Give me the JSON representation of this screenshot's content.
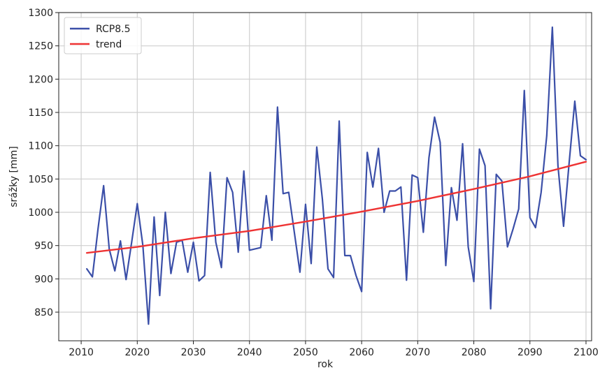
{
  "chart_data": {
    "type": "line",
    "title": "",
    "xlabel": "rok",
    "ylabel": "srážky [mm]",
    "xlim": [
      2006,
      2101
    ],
    "ylim": [
      807,
      1300
    ],
    "xticks": [
      2010,
      2020,
      2030,
      2040,
      2050,
      2060,
      2070,
      2080,
      2090,
      2100
    ],
    "yticks": [
      850,
      900,
      950,
      1000,
      1050,
      1100,
      1150,
      1200,
      1250,
      1300
    ],
    "grid": true,
    "legend_position": "top-left",
    "series": [
      {
        "name": "RCP8.5",
        "color": "#3b4fa8",
        "x": [
          2011,
          2012,
          2013,
          2014,
          2015,
          2016,
          2017,
          2018,
          2019,
          2020,
          2021,
          2022,
          2023,
          2024,
          2025,
          2026,
          2027,
          2028,
          2029,
          2030,
          2031,
          2032,
          2033,
          2034,
          2035,
          2036,
          2037,
          2038,
          2039,
          2040,
          2041,
          2042,
          2043,
          2044,
          2045,
          2046,
          2047,
          2048,
          2049,
          2050,
          2051,
          2052,
          2053,
          2054,
          2055,
          2056,
          2057,
          2058,
          2059,
          2060,
          2061,
          2062,
          2063,
          2064,
          2065,
          2066,
          2067,
          2068,
          2069,
          2070,
          2071,
          2072,
          2073,
          2074,
          2075,
          2076,
          2077,
          2078,
          2079,
          2080,
          2081,
          2082,
          2083,
          2084,
          2085,
          2086,
          2087,
          2088,
          2089,
          2090,
          2091,
          2092,
          2093,
          2094,
          2095,
          2096,
          2097,
          2098,
          2099,
          2100
        ],
        "values": [
          915,
          903,
          975,
          1040,
          945,
          912,
          957,
          899,
          955,
          1013,
          950,
          832,
          993,
          875,
          1000,
          908,
          955,
          958,
          910,
          955,
          897,
          905,
          1060,
          955,
          917,
          1052,
          1030,
          940,
          1062,
          943,
          945,
          947,
          1025,
          958,
          1158,
          1028,
          1030,
          970,
          910,
          1012,
          923,
          1098,
          1020,
          915,
          902,
          1137,
          935,
          935,
          905,
          881,
          1090,
          1038,
          1096,
          1000,
          1032,
          1032,
          1038,
          898,
          1056,
          1052,
          970,
          1082,
          1143,
          1105,
          920,
          1037,
          988,
          1103,
          948,
          896,
          1095,
          1070,
          855,
          1057,
          1047,
          948,
          975,
          1005,
          1183,
          992,
          977,
          1030,
          1115,
          1278,
          1070,
          979,
          1075,
          1167,
          1085,
          1079
        ]
      },
      {
        "name": "trend",
        "color": "#ee3333",
        "x": [
          2011,
          2020,
          2030,
          2040,
          2050,
          2060,
          2070,
          2080,
          2090,
          2100
        ],
        "values": [
          939,
          948,
          961,
          972,
          986,
          1001,
          1017,
          1035,
          1054,
          1076
        ]
      }
    ]
  }
}
